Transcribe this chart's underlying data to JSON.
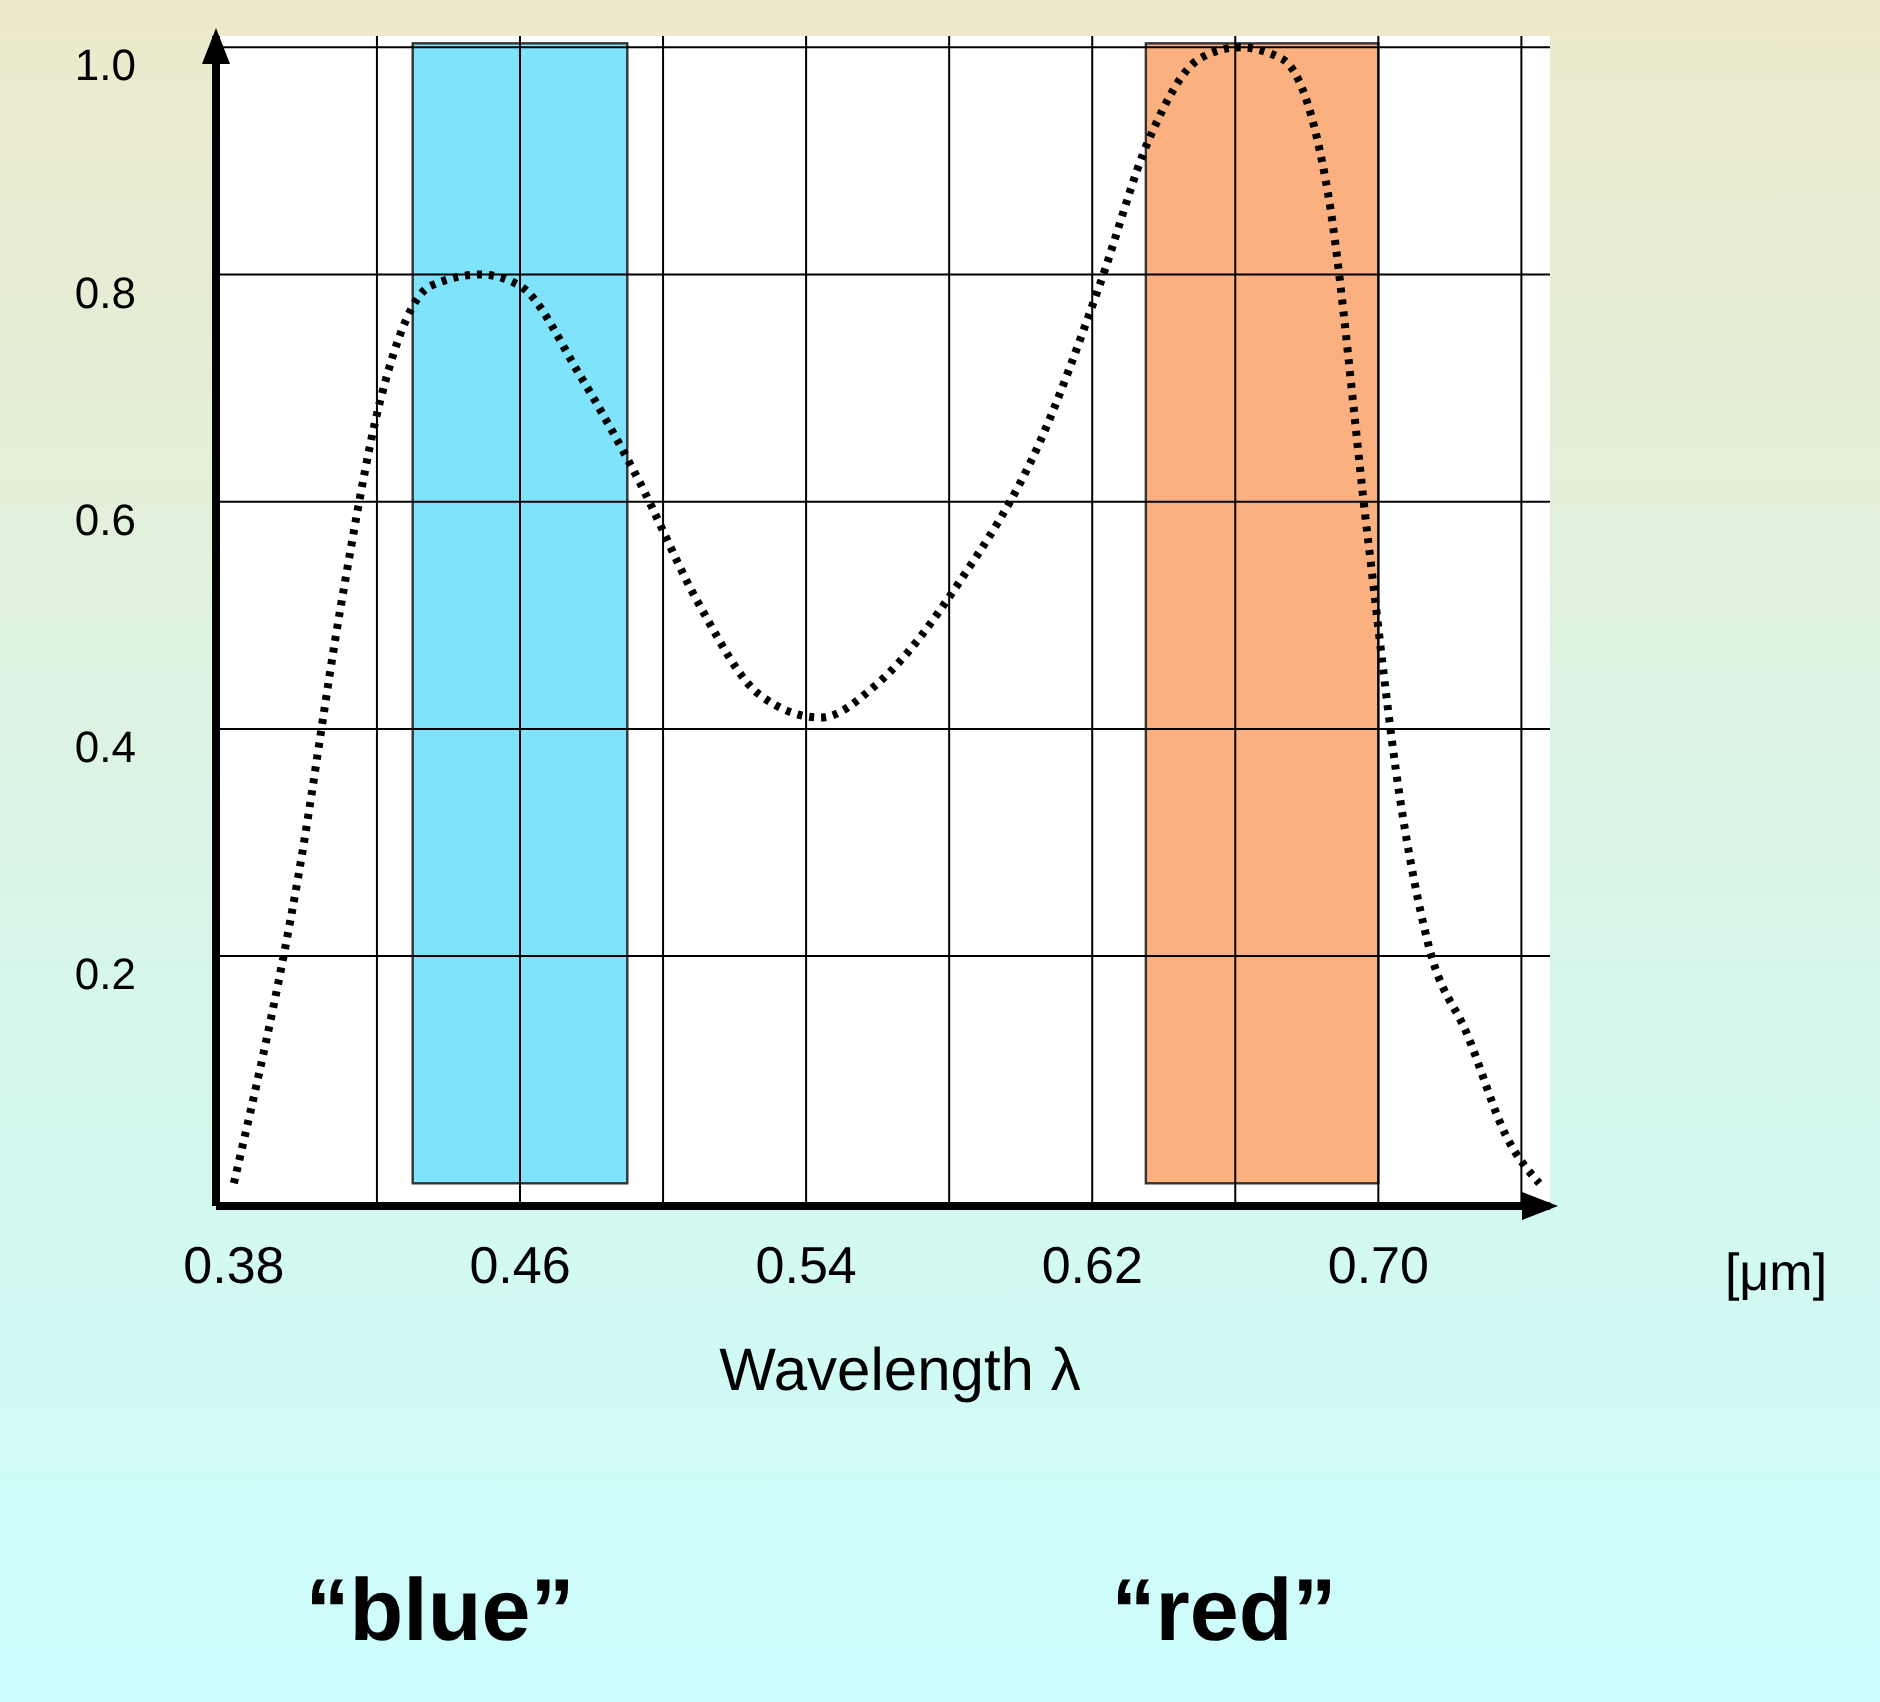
{
  "chart_data": {
    "type": "line",
    "xlabel": "Wavelength λ",
    "x": [
      0.38,
      0.398,
      0.41,
      0.421,
      0.435,
      0.449,
      0.46,
      0.477,
      0.493,
      0.51,
      0.527,
      0.544,
      0.56,
      0.583,
      0.605,
      0.622,
      0.636,
      0.65,
      0.661,
      0.673,
      0.686,
      0.697,
      0.706,
      0.714,
      0.725,
      0.736,
      0.745
    ],
    "series": [
      {
        "color": "#000000",
        "line_style": "dotted",
        "values": [
          0,
          0.27,
          0.51,
          0.69,
          0.79,
          0.8,
          0.79,
          0.71,
          0.62,
          0.51,
          0.43,
          0.41,
          0.44,
          0.53,
          0.65,
          0.79,
          0.92,
          0.99,
          1.0,
          0.99,
          0.87,
          0.57,
          0.34,
          0.21,
          0.13,
          0.04,
          0
        ]
      }
    ],
    "xlim": [
      0.375,
      0.748
    ],
    "ylim": [
      -0.02,
      1.01
    ],
    "xticks": [
      {
        "value": 0.38,
        "label": "0.38"
      },
      {
        "value": 0.42,
        "label": null
      },
      {
        "value": 0.46,
        "label": "0.46"
      },
      {
        "value": 0.5,
        "label": null
      },
      {
        "value": 0.54,
        "label": "0.54"
      },
      {
        "value": 0.58,
        "label": null
      },
      {
        "value": 0.62,
        "label": "0.62"
      },
      {
        "value": 0.66,
        "label": null
      },
      {
        "value": 0.7,
        "label": "0.70"
      },
      {
        "value": 0.74,
        "label": null
      }
    ],
    "yticks": [
      0.2,
      0.4,
      0.6,
      0.8,
      {
        "value": 1.0,
        "label": "1.0"
      }
    ],
    "grid": true,
    "marker": "none",
    "bands": [
      {
        "axis": "x",
        "from": 0.43,
        "to": 0.49,
        "color": "#7fe3fb"
      },
      {
        "axis": "x",
        "from": 0.635,
        "to": 0.7,
        "color": "#fbb07f"
      }
    ],
    "annotations": [
      "[μm]",
      "“blue”",
      "“red”"
    ]
  }
}
